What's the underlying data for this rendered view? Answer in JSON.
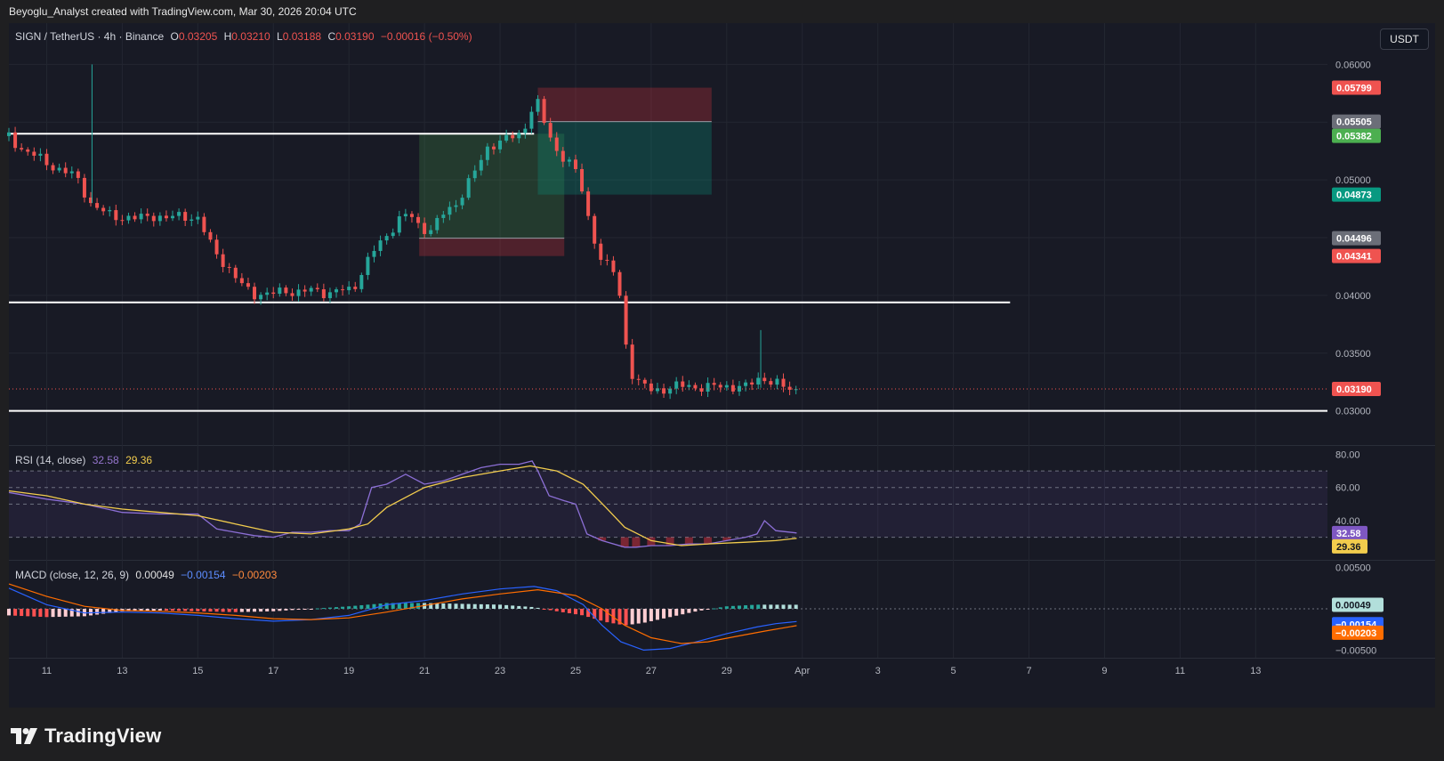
{
  "header": {
    "text": "Beyoglu_Analyst created with TradingView.com, Mar 30, 2026 20:04 UTC"
  },
  "footer": {
    "brand": "TradingView"
  },
  "currency_button": "USDT",
  "main_legend": {
    "symbol": "SIGN / TetherUS · 4h · Binance",
    "o_label": "O",
    "o_value": "0.03205",
    "h_label": "H",
    "h_value": "0.03210",
    "l_label": "L",
    "l_value": "0.03188",
    "c_label": "C",
    "c_value": "0.03190",
    "change": "−0.00016 (−0.50%)"
  },
  "rsi_legend": {
    "name": "RSI (14, close)",
    "rsi": "32.58",
    "ma": "29.36"
  },
  "macd_legend": {
    "name": "MACD (close, 12, 26, 9)",
    "hist": "0.00049",
    "macd": "−0.00154",
    "signal": "−0.00203"
  },
  "colors": {
    "up": "#26a69a",
    "down": "#ef5350",
    "rsi": "#7e57c2",
    "rsi_ma": "#f2cc4d",
    "macd": "#2962ff",
    "signal": "#ff6d00",
    "bg": "#181a25"
  },
  "chart_data": [
    {
      "type": "candlestick",
      "title": "SIGN / TetherUS · 4h · Binance",
      "x_tick_labels": [
        "11",
        "13",
        "15",
        "17",
        "19",
        "21",
        "23",
        "25",
        "27",
        "29",
        "Apr",
        "3",
        "5",
        "7",
        "9",
        "11",
        "13"
      ],
      "y_tick_labels": [
        "0.06000",
        "0.05500",
        "0.05000",
        "0.04500",
        "0.04000",
        "0.03500",
        "0.03000"
      ],
      "ylim": [
        0.0272,
        0.0625
      ],
      "price_tags": [
        {
          "value": "0.05799",
          "color": "#ef5350"
        },
        {
          "value": "0.05505",
          "color": "#6b6e78"
        },
        {
          "value": "0.05382",
          "color": "#4caf50"
        },
        {
          "value": "0.04873",
          "color": "#089981"
        },
        {
          "value": "0.04496",
          "color": "#6b6e78"
        },
        {
          "value": "0.04341",
          "color": "#ef5350"
        },
        {
          "value": "0.03190",
          "color": "#ef5350"
        }
      ],
      "horizontal_lines": [
        {
          "price": 0.054,
          "from_day": 10.0,
          "to_day": 23.9
        },
        {
          "price": 0.0394,
          "from_day": 10.0,
          "to_day": 36.5
        },
        {
          "price": 0.03,
          "from_day": 10.0,
          "to_day": 44.9
        }
      ],
      "positions": [
        {
          "kind": "long",
          "entry": 0.04496,
          "target": 0.054,
          "stop": 0.04341,
          "from_day": 20.86,
          "to_day": 24.7
        },
        {
          "kind": "short",
          "entry": 0.05505,
          "target": 0.04873,
          "stop": 0.05799,
          "from_day": 24.0,
          "to_day": 28.6
        }
      ],
      "anchor_points": [
        [
          10.0,
          0.0538
        ],
        [
          10.3,
          0.0528
        ],
        [
          10.6,
          0.0522
        ],
        [
          11.0,
          0.0515
        ],
        [
          11.4,
          0.0508
        ],
        [
          11.8,
          0.0502
        ],
        [
          12.2,
          0.0478
        ],
        [
          12.6,
          0.047
        ],
        [
          13.0,
          0.0468
        ],
        [
          13.4,
          0.0466
        ],
        [
          13.8,
          0.047
        ],
        [
          14.2,
          0.0466
        ],
        [
          14.6,
          0.047
        ],
        [
          15.0,
          0.0466
        ],
        [
          15.3,
          0.0446
        ],
        [
          15.7,
          0.0428
        ],
        [
          16.1,
          0.041
        ],
        [
          16.5,
          0.0402
        ],
        [
          16.9,
          0.04
        ],
        [
          17.3,
          0.0405
        ],
        [
          17.7,
          0.0402
        ],
        [
          18.1,
          0.0405
        ],
        [
          18.5,
          0.0402
        ],
        [
          18.8,
          0.0404
        ],
        [
          19.1,
          0.0405
        ],
        [
          19.4,
          0.0425
        ],
        [
          19.7,
          0.044
        ],
        [
          20.0,
          0.0452
        ],
        [
          20.3,
          0.0466
        ],
        [
          20.6,
          0.047
        ],
        [
          20.9,
          0.0458
        ],
        [
          21.2,
          0.0458
        ],
        [
          21.5,
          0.047
        ],
        [
          21.8,
          0.0478
        ],
        [
          22.1,
          0.0495
        ],
        [
          22.4,
          0.051
        ],
        [
          22.7,
          0.053
        ],
        [
          23.0,
          0.0534
        ],
        [
          23.3,
          0.0536
        ],
        [
          23.6,
          0.054
        ],
        [
          23.8,
          0.0562
        ],
        [
          24.0,
          0.0566
        ],
        [
          24.2,
          0.0545
        ],
        [
          24.5,
          0.0525
        ],
        [
          24.8,
          0.0518
        ],
        [
          25.1,
          0.05
        ],
        [
          25.4,
          0.0458
        ],
        [
          25.7,
          0.043
        ],
        [
          26.0,
          0.042
        ],
        [
          26.2,
          0.0395
        ],
        [
          26.4,
          0.034
        ],
        [
          26.6,
          0.0325
        ],
        [
          27.0,
          0.0318
        ],
        [
          27.5,
          0.032
        ],
        [
          28.0,
          0.0322
        ],
        [
          28.5,
          0.032
        ],
        [
          29.0,
          0.0322
        ],
        [
          29.5,
          0.032
        ],
        [
          29.9,
          0.033
        ],
        [
          30.2,
          0.0325
        ],
        [
          30.5,
          0.032
        ],
        [
          30.85,
          0.0319
        ]
      ]
    },
    {
      "type": "line",
      "title": "RSI (14, close)",
      "y_tick_labels": [
        "80.00",
        "60.00",
        "40.00"
      ],
      "ylim": [
        18,
        84
      ],
      "levels": [
        70,
        60,
        50,
        30
      ],
      "series": [
        {
          "name": "RSI",
          "points": [
            [
              10.0,
              57
            ],
            [
              11.0,
              53
            ],
            [
              12.0,
              50
            ],
            [
              13.0,
              45
            ],
            [
              14.0,
              44
            ],
            [
              15.0,
              44
            ],
            [
              15.5,
              35
            ],
            [
              16.5,
              31
            ],
            [
              17.0,
              30
            ],
            [
              17.5,
              33
            ],
            [
              18.0,
              33
            ],
            [
              18.5,
              34
            ],
            [
              19.0,
              34
            ],
            [
              19.3,
              38
            ],
            [
              19.6,
              60
            ],
            [
              20.0,
              62
            ],
            [
              20.5,
              68
            ],
            [
              21.0,
              62
            ],
            [
              21.5,
              64
            ],
            [
              22.0,
              68
            ],
            [
              22.5,
              72
            ],
            [
              23.0,
              74
            ],
            [
              23.5,
              74
            ],
            [
              23.85,
              76
            ],
            [
              24.0,
              70
            ],
            [
              24.3,
              55
            ],
            [
              24.7,
              52
            ],
            [
              25.0,
              50
            ],
            [
              25.3,
              32
            ],
            [
              25.7,
              28
            ],
            [
              26.3,
              24
            ],
            [
              26.6,
              24
            ],
            [
              27.0,
              25
            ],
            [
              27.5,
              25
            ],
            [
              28.0,
              26
            ],
            [
              28.5,
              26
            ],
            [
              29.0,
              28
            ],
            [
              29.5,
              30
            ],
            [
              29.8,
              32
            ],
            [
              30.0,
              40
            ],
            [
              30.3,
              34
            ],
            [
              30.85,
              32.58
            ]
          ]
        },
        {
          "name": "RSI MA",
          "points": [
            [
              10.0,
              58
            ],
            [
              11.0,
              55
            ],
            [
              12.0,
              50
            ],
            [
              13.0,
              47
            ],
            [
              14.0,
              45
            ],
            [
              15.0,
              43
            ],
            [
              16.0,
              38
            ],
            [
              17.0,
              33
            ],
            [
              18.0,
              32
            ],
            [
              19.0,
              35
            ],
            [
              19.5,
              38
            ],
            [
              20.0,
              48
            ],
            [
              21.0,
              60
            ],
            [
              22.0,
              66
            ],
            [
              23.0,
              70
            ],
            [
              23.8,
              73
            ],
            [
              24.5,
              70
            ],
            [
              25.2,
              62
            ],
            [
              25.8,
              48
            ],
            [
              26.3,
              36
            ],
            [
              27.0,
              28
            ],
            [
              27.8,
              25
            ],
            [
              28.5,
              26
            ],
            [
              29.5,
              27
            ],
            [
              30.3,
              28
            ],
            [
              30.85,
              29.36
            ]
          ]
        }
      ]
    },
    {
      "type": "histogram-line",
      "title": "MACD (close, 12, 26, 9)",
      "y_tick_labels": [
        "0.00500",
        "−0.00500"
      ],
      "ylim": [
        -0.0056,
        0.0056
      ],
      "series": [
        {
          "name": "MACD",
          "points": [
            [
              10.0,
              0.0025
            ],
            [
              11.0,
              0.0005
            ],
            [
              12.0,
              -0.0005
            ],
            [
              13.0,
              -0.0004
            ],
            [
              14.0,
              -0.0005
            ],
            [
              15.0,
              -0.0008
            ],
            [
              16.0,
              -0.0012
            ],
            [
              17.0,
              -0.0015
            ],
            [
              18.0,
              -0.0013
            ],
            [
              19.0,
              -0.0008
            ],
            [
              20.0,
              0.0005
            ],
            [
              21.0,
              0.001
            ],
            [
              22.0,
              0.0018
            ],
            [
              23.0,
              0.0024
            ],
            [
              23.9,
              0.0027
            ],
            [
              24.5,
              0.0022
            ],
            [
              25.2,
              0.0005
            ],
            [
              25.7,
              -0.002
            ],
            [
              26.2,
              -0.004
            ],
            [
              26.8,
              -0.005
            ],
            [
              27.5,
              -0.0048
            ],
            [
              28.2,
              -0.004
            ],
            [
              29.0,
              -0.003
            ],
            [
              29.8,
              -0.0022
            ],
            [
              30.3,
              -0.0018
            ],
            [
              30.85,
              -0.00154
            ]
          ]
        },
        {
          "name": "Signal",
          "points": [
            [
              10.0,
              0.003
            ],
            [
              11.0,
              0.0015
            ],
            [
              12.0,
              0.0003
            ],
            [
              13.0,
              -0.0002
            ],
            [
              14.0,
              -0.0003
            ],
            [
              15.0,
              -0.0005
            ],
            [
              16.0,
              -0.0008
            ],
            [
              17.0,
              -0.0012
            ],
            [
              18.0,
              -0.0013
            ],
            [
              19.0,
              -0.0011
            ],
            [
              20.0,
              -0.0004
            ],
            [
              21.0,
              0.0004
            ],
            [
              22.0,
              0.0012
            ],
            [
              23.0,
              0.0018
            ],
            [
              24.0,
              0.0023
            ],
            [
              25.0,
              0.0016
            ],
            [
              25.7,
              0.0
            ],
            [
              26.3,
              -0.002
            ],
            [
              27.0,
              -0.0035
            ],
            [
              27.8,
              -0.0042
            ],
            [
              28.5,
              -0.004
            ],
            [
              29.3,
              -0.0033
            ],
            [
              30.0,
              -0.0027
            ],
            [
              30.85,
              -0.00203
            ]
          ]
        },
        {
          "name": "Histogram",
          "points": [
            [
              10.0,
              -0.0008
            ],
            [
              11.0,
              -0.001
            ],
            [
              12.0,
              -0.0009
            ],
            [
              13.0,
              -0.0003
            ],
            [
              14.0,
              -0.0002
            ],
            [
              15.0,
              -0.0003
            ],
            [
              16.0,
              -0.0004
            ],
            [
              17.0,
              -0.0003
            ],
            [
              18.0,
              0.0
            ],
            [
              19.0,
              0.0003
            ],
            [
              20.0,
              0.0007
            ],
            [
              21.0,
              0.0007
            ],
            [
              22.0,
              0.0006
            ],
            [
              23.0,
              0.0005
            ],
            [
              23.9,
              0.0002
            ],
            [
              24.5,
              -0.0003
            ],
            [
              25.2,
              -0.0008
            ],
            [
              25.8,
              -0.0016
            ],
            [
              26.3,
              -0.002
            ],
            [
              26.8,
              -0.0017
            ],
            [
              27.5,
              -0.001
            ],
            [
              28.2,
              -0.0003
            ],
            [
              29.0,
              0.0003
            ],
            [
              29.8,
              0.0005
            ],
            [
              30.85,
              0.00049
            ]
          ]
        }
      ],
      "price_tags": [
        {
          "value": "0.00049",
          "color": "#b2dfdb"
        },
        {
          "value": "−0.00154",
          "color": "#2962ff"
        },
        {
          "value": "−0.00203",
          "color": "#ff6d00"
        }
      ]
    }
  ]
}
